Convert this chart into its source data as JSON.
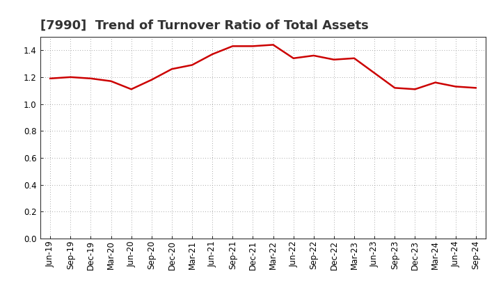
{
  "title": "[7990]  Trend of Turnover Ratio of Total Assets",
  "x_labels": [
    "Jun-19",
    "Sep-19",
    "Dec-19",
    "Mar-20",
    "Jun-20",
    "Sep-20",
    "Dec-20",
    "Mar-21",
    "Jun-21",
    "Sep-21",
    "Dec-21",
    "Mar-22",
    "Jun-22",
    "Sep-22",
    "Dec-22",
    "Mar-23",
    "Jun-23",
    "Sep-23",
    "Dec-23",
    "Mar-24",
    "Jun-24",
    "Sep-24"
  ],
  "values": [
    1.19,
    1.2,
    1.19,
    1.17,
    1.11,
    1.18,
    1.26,
    1.29,
    1.37,
    1.43,
    1.43,
    1.44,
    1.34,
    1.36,
    1.33,
    1.34,
    1.23,
    1.12,
    1.11,
    1.16,
    1.13,
    1.12
  ],
  "line_color": "#cc0000",
  "line_width": 1.8,
  "ylim": [
    0.0,
    1.5
  ],
  "yticks": [
    0.0,
    0.2,
    0.4,
    0.6,
    0.8,
    1.0,
    1.2,
    1.4
  ],
  "background_color": "#ffffff",
  "grid_color": "#888888",
  "title_fontsize": 13,
  "tick_fontsize": 8.5,
  "title_color": "#333333"
}
